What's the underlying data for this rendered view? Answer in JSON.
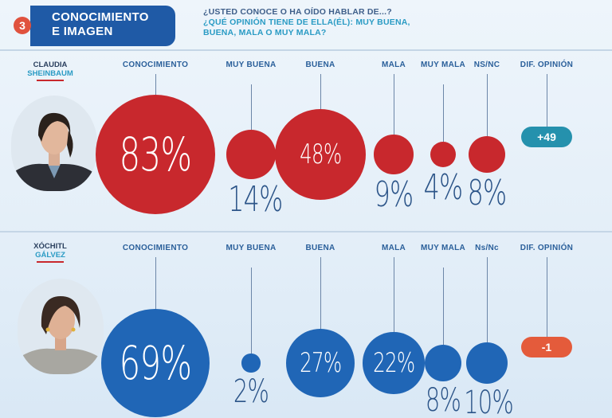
{
  "header": {
    "badge_number": "3",
    "title_line1": "CONOCIMIENTO",
    "title_line2": "E IMAGEN",
    "question_line1": "¿USTED CONOCE O HA OÍDO HABLAR DE...?",
    "question_line2": "¿QUÉ OPINIÓN TIENE DE ELLA(ÉL): MUY BUENA, BUENA, MALA O MUY MALA?"
  },
  "colors": {
    "sheinbaum": "#c8282d",
    "galvez": "#2066b6",
    "pill_positive": "#2591ad",
    "pill_negative": "#e45b3b",
    "title_bg": "#1f5aa6"
  },
  "columns": {
    "conocimiento": "CONOCIMIENTO",
    "muy_buena": "MUY BUENA",
    "buena": "BUENA",
    "mala": "MALA",
    "muy_mala": "MUY MALA",
    "nsnc_1": "NS/NC",
    "nsnc_2": "Ns/Nc",
    "dif": "DIF. OPINIÓN"
  },
  "chart_data": [
    {
      "type": "bubble",
      "candidate_first": "CLAUDIA",
      "candidate_last": "SHEINBAUM",
      "categories": [
        "CONOCIMIENTO",
        "MUY BUENA",
        "BUENA",
        "MALA",
        "MUY MALA",
        "NS/NC"
      ],
      "values": [
        83,
        14,
        48,
        9,
        4,
        8
      ],
      "labels": [
        "83%",
        "14%",
        "48%",
        "9%",
        "4%",
        "8%"
      ],
      "dif_opinion": "+49"
    },
    {
      "type": "bubble",
      "candidate_first": "XÓCHITL",
      "candidate_last": "GÁLVEZ",
      "categories": [
        "CONOCIMIENTO",
        "MUY BUENA",
        "BUENA",
        "MALA",
        "MUY MALA",
        "Ns/Nc"
      ],
      "values": [
        69,
        2,
        27,
        22,
        8,
        10
      ],
      "labels": [
        "69%",
        "2%",
        "27%",
        "22%",
        "8%",
        "10%"
      ],
      "dif_opinion": "-1"
    }
  ]
}
